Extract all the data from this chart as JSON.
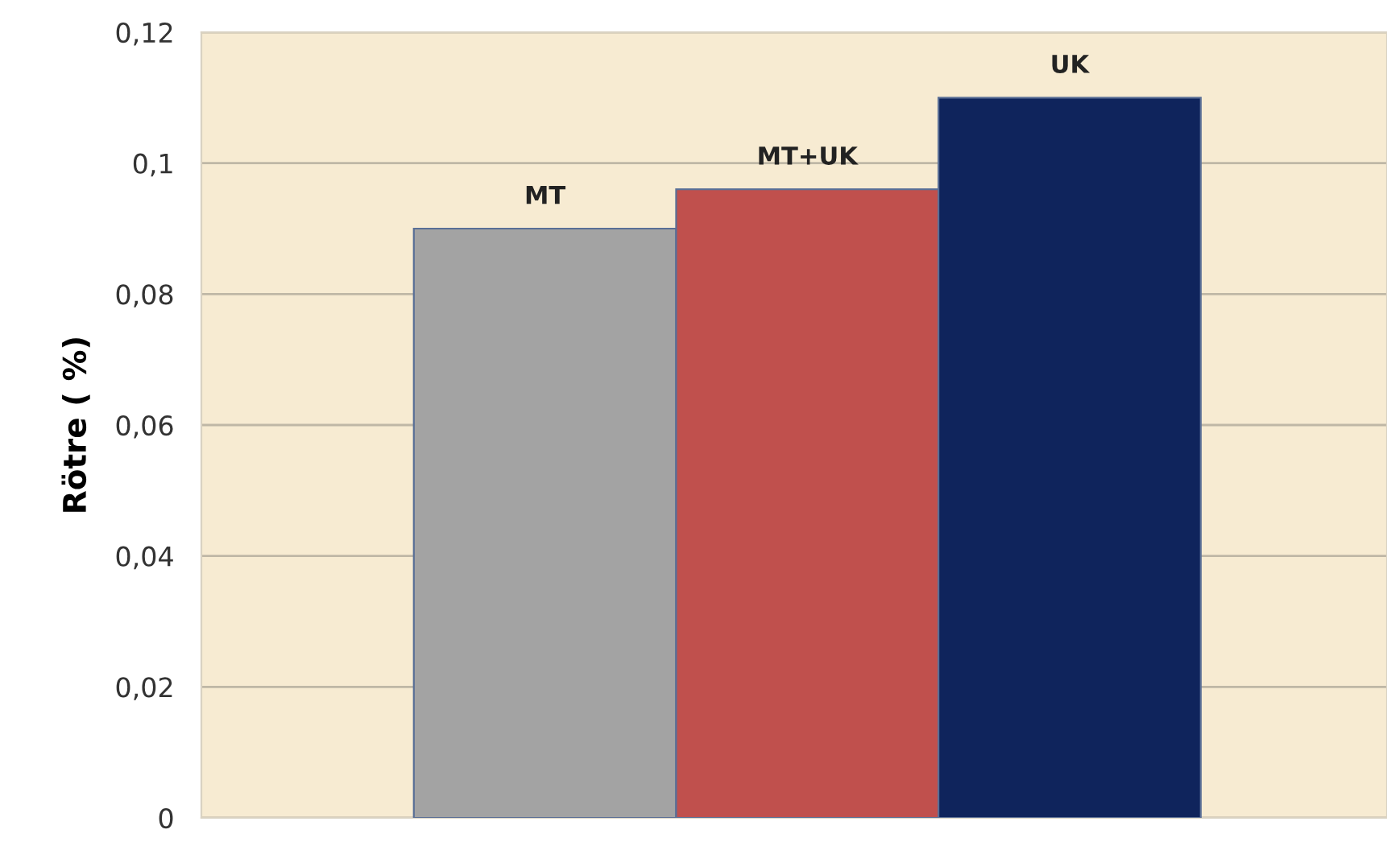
{
  "chart_data": {
    "type": "bar",
    "ylabel": "Rötre ( %)",
    "categories": [
      "MT",
      "MT+UK",
      "UK"
    ],
    "values": [
      0.09,
      0.096,
      0.11
    ],
    "colors": [
      "#a3a3a3",
      "#c0504d",
      "#0f245c"
    ],
    "ylim": [
      0,
      0.12
    ],
    "yticks": [
      {
        "value": 0,
        "label": "0"
      },
      {
        "value": 0.02,
        "label": "0,02"
      },
      {
        "value": 0.04,
        "label": "0,04"
      },
      {
        "value": 0.06,
        "label": "0,06"
      },
      {
        "value": 0.08,
        "label": "0,08"
      },
      {
        "value": 0.1,
        "label": "0,1"
      },
      {
        "value": 0.12,
        "label": "0,12"
      }
    ],
    "grid": "y"
  }
}
